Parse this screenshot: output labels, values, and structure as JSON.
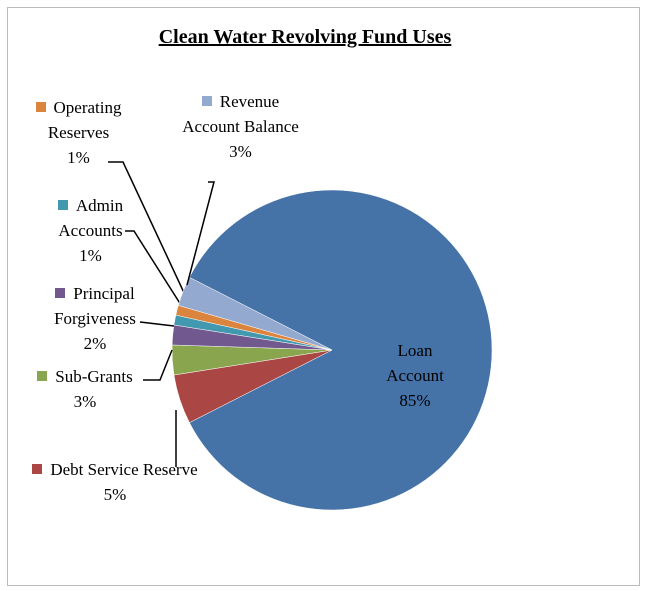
{
  "chart_data": {
    "type": "pie",
    "title": "Clean Water Revolving Fund Uses",
    "categories": [
      "Loan Account",
      "Debt Service Reserve",
      "Sub-Grants",
      "Principal Forgiveness",
      "Admin Accounts",
      "Operating Reserves",
      "Revenue Account Balance"
    ],
    "values": [
      85,
      5,
      3,
      2,
      1,
      1,
      3
    ],
    "value_labels": [
      "85%",
      "5%",
      "3%",
      "2%",
      "1%",
      "1%",
      "3%"
    ],
    "colors": [
      "#4572a7",
      "#aa4643",
      "#89a54e",
      "#71588f",
      "#4198af",
      "#db843d",
      "#93a9cf"
    ]
  }
}
